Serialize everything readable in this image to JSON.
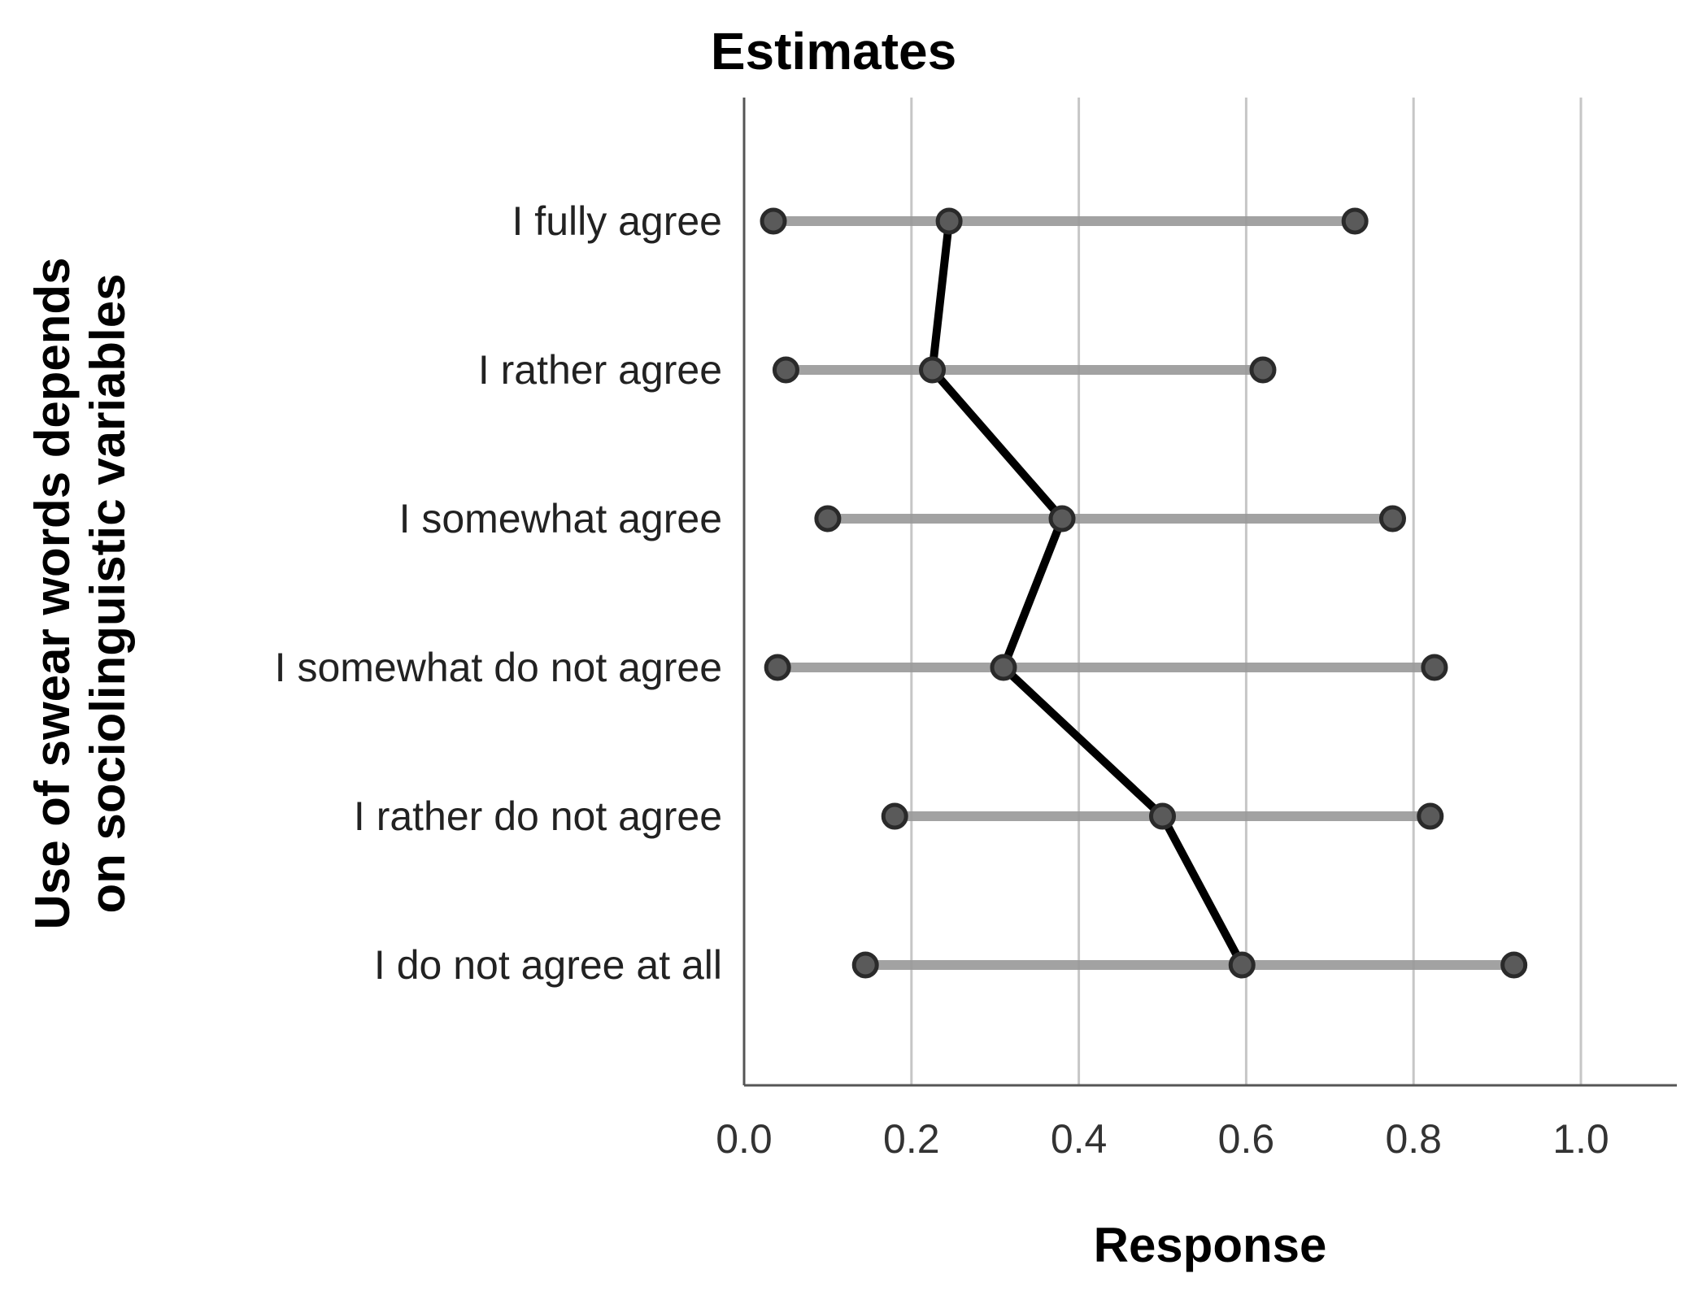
{
  "chart_data": {
    "type": "line",
    "title": "Estimates",
    "xlabel": "Response",
    "ylabel_lines": [
      "Use of swear words depends",
      "on sociolinguistic variables"
    ],
    "xlim": [
      0.0,
      1.1
    ],
    "x_ticks": [
      0.0,
      0.2,
      0.4,
      0.6,
      0.8,
      1.0
    ],
    "x_tick_labels": [
      "0.0",
      "0.2",
      "0.4",
      "0.6",
      "0.8",
      "1.0"
    ],
    "grid": true,
    "categories": [
      "I fully agree",
      "I rather agree",
      "I somewhat agree",
      "I somewhat do not agree",
      "I rather do not agree",
      "I do not agree at all"
    ],
    "estimates": [
      0.245,
      0.225,
      0.38,
      0.31,
      0.5,
      0.595
    ],
    "lower": [
      0.035,
      0.05,
      0.1,
      0.04,
      0.18,
      0.145
    ],
    "upper": [
      0.73,
      0.62,
      0.775,
      0.825,
      0.82,
      0.92
    ]
  }
}
